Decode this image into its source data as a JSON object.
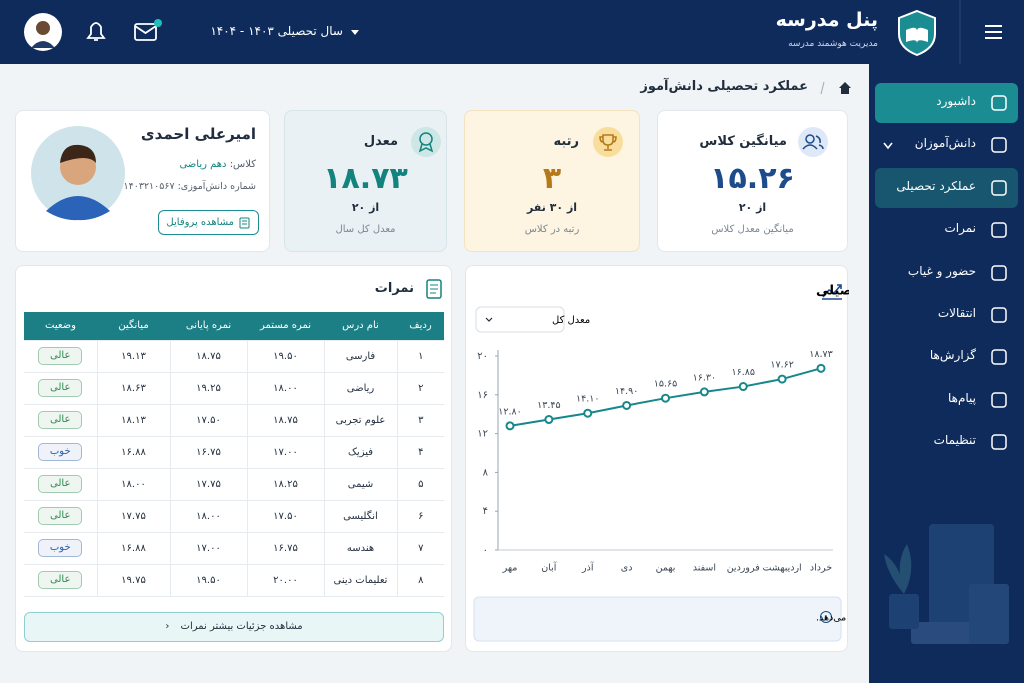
{
  "header": {
    "app_title": "پنل مدرسه",
    "app_subtitle": "مدیریت هوشمند مدرسه",
    "year_selector": "سال تحصیلی ۱۴۰۳ - ۱۴۰۴"
  },
  "sidebar": {
    "items": [
      "داشبورد",
      "دانش‌آموزان",
      "عملکرد تحصیلی",
      "نمرات",
      "حضور و غیاب",
      "انتقالات",
      "گزارش‌ها",
      "پیام‌ها",
      "تنظیمات"
    ],
    "highlighted": 0,
    "selected": 2
  },
  "breadcrumb": {
    "title": "عملکرد تحصیلی دانش‌آموز"
  },
  "stats": {
    "class_average": {
      "title": "میانگین کلاس",
      "value": "۱۵.۲۶",
      "out_of": "از ۲۰",
      "caption": "میانگین معدل کلاس"
    },
    "rank": {
      "title": "رتبه",
      "value": "۳",
      "out_of": "از ۳۰ نفر",
      "caption": "رتبه در کلاس"
    },
    "gpa": {
      "title": "معدل",
      "value": "۱۸.۷۳",
      "out_of": "از ۲۰",
      "caption": "معدل کل سال"
    }
  },
  "profile": {
    "name": "امیرعلی احمدی",
    "class_label": "کلاس:",
    "class_value": "دهم ریاضی",
    "student_number": "شماره دانش‌آموزی: ۱۴۰۳۲۱۰۵۶۷",
    "button": "مشاهده پروفایل"
  },
  "grades": {
    "title": "نمرات",
    "headers": [
      "ردیف",
      "نام درس",
      "نمره مستمر",
      "نمره پایانی",
      "میانگین",
      "وضعیت"
    ],
    "rows": [
      [
        "۱",
        "فارسی",
        "۱۹.۵۰",
        "۱۸.۷۵",
        "۱۹.۱۳",
        "عالی"
      ],
      [
        "۲",
        "ریاضی",
        "۱۸.۰۰",
        "۱۹.۲۵",
        "۱۸.۶۳",
        "عالی"
      ],
      [
        "۳",
        "علوم تجربی",
        "۱۸.۷۵",
        "۱۷.۵۰",
        "۱۸.۱۳",
        "عالی"
      ],
      [
        "۴",
        "فیزیک",
        "۱۷.۰۰",
        "۱۶.۷۵",
        "۱۶.۸۸",
        "خوب"
      ],
      [
        "۵",
        "شیمی",
        "۱۸.۲۵",
        "۱۷.۷۵",
        "۱۸.۰۰",
        "عالی"
      ],
      [
        "۶",
        "انگلیسی",
        "۱۷.۵۰",
        "۱۸.۰۰",
        "۱۷.۷۵",
        "عالی"
      ],
      [
        "۷",
        "هندسه",
        "۱۶.۷۵",
        "۱۷.۰۰",
        "۱۶.۸۸",
        "خوب"
      ],
      [
        "۸",
        "تعلیمات دینی",
        "۲۰.۰۰",
        "۱۹.۵۰",
        "۱۹.۷۵",
        "عالی"
      ]
    ],
    "status_colors": [
      "#2f8a4a",
      "#2f8a4a",
      "#2f8a4a",
      "#2d5ea8",
      "#2f8a4a",
      "#2f8a4a",
      "#2d5ea8",
      "#2f8a4a"
    ],
    "button": "مشاهده جزئیات بیشتر نمرات"
  },
  "chart_data": {
    "type": "line",
    "title": "نمودار پیشرفت تحصیلی",
    "selector": "معدل کل",
    "color": "#16878a",
    "categories": [
      "مهر",
      "آبان",
      "آذر",
      "دی",
      "بهمن",
      "اسفند",
      "فروردین",
      "اردیبهشت",
      "خرداد"
    ],
    "values": [
      12.8,
      13.45,
      14.1,
      14.9,
      15.65,
      16.3,
      16.85,
      17.62,
      18.73
    ],
    "value_labels": [
      "۱۲.۸۰",
      "۱۳.۴۵",
      "۱۴.۱۰",
      "۱۴.۹۰",
      "۱۵.۶۵",
      "۱۶.۳۰",
      "۱۶.۸۵",
      "۱۷.۶۲",
      "۱۸.۷۳"
    ],
    "ylim": [
      0,
      20
    ],
    "yticks": [
      {
        "value": 0,
        "label": "۰"
      },
      {
        "value": 4,
        "label": "۴"
      },
      {
        "value": 8,
        "label": "۸"
      },
      {
        "value": 12,
        "label": "۱۲"
      },
      {
        "value": 16,
        "label": "۱۶"
      },
      {
        "value": 20,
        "label": "۲۰"
      }
    ],
    "note": "نمودار بالا روند پیشرفت معدل شما را در طول سال تحصیلی نشان می‌دهد."
  }
}
